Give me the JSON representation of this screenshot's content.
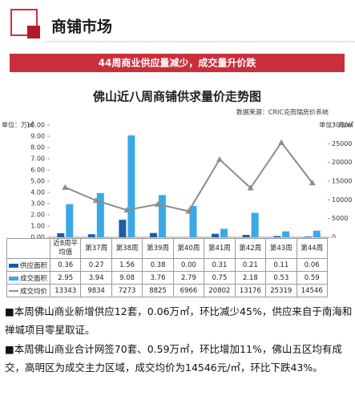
{
  "header": {
    "title": "商铺市场",
    "banner": "44周商业供应量减少，成交量升价跌"
  },
  "chart_data": {
    "type": "bar",
    "title": "佛山近八周商铺供求量价走势图",
    "source": "数据来源：CRIC克而瑞房价系统",
    "y_label": "单位：万㎡",
    "y2_label": "单位：元/㎡",
    "categories": [
      "近8周平均值",
      "第37周",
      "第38周",
      "第39周",
      "第40周",
      "第41周",
      "第42周",
      "第43周",
      "第44周"
    ],
    "series": [
      {
        "name": "供应面积",
        "type": "bar",
        "color": "#1b5ea6",
        "values": [
          0.36,
          0.27,
          1.56,
          0.38,
          0,
          0.31,
          0.21,
          0.11,
          0.06
        ],
        "value_labels": [
          "0.36",
          "0.27",
          "1.56",
          "0.38",
          "0.00",
          "0.31",
          "0.21",
          "0.11",
          "0.06"
        ]
      },
      {
        "name": "成交面积",
        "type": "bar",
        "color": "#3aa9e6",
        "values": [
          2.95,
          3.94,
          9.08,
          3.76,
          2.79,
          0.75,
          2.18,
          0.53,
          0.59
        ]
      },
      {
        "name": "成交均价",
        "type": "line",
        "axis": "y2",
        "color": "#8c8c8c",
        "values": [
          13343,
          9834,
          7273,
          8825,
          6966,
          20802,
          13176,
          25319,
          14546
        ]
      }
    ],
    "ylim": [
      0,
      10
    ],
    "yticks": [
      {
        "value": 0,
        "label": "0.00"
      },
      {
        "value": 1,
        "label": "1.00"
      },
      {
        "value": 2,
        "label": "2.00"
      },
      {
        "value": 3,
        "label": "3.00"
      },
      {
        "value": 4,
        "label": "4.00"
      },
      {
        "value": 5,
        "label": "5.00"
      },
      {
        "value": 6,
        "label": "6.00"
      },
      {
        "value": 7,
        "label": "7.00"
      },
      {
        "value": 8,
        "label": "8.00"
      },
      {
        "value": 9,
        "label": "9.00"
      },
      {
        "value": 10,
        "label": "10.00"
      }
    ],
    "y2lim": [
      0,
      30000
    ],
    "y2ticks": [
      0,
      5000,
      10000,
      15000,
      20000,
      25000,
      30000
    ]
  },
  "paragraphs": [
    "■本周佛山商业新增供应12套，0.06万㎡，环比减少45%，供应来自于南海和禅城项目零星取证。",
    "■本周佛山商业合计网签70套、0.59万㎡，环比增加11%，佛山五区均有成交，高明区为成交主力区域，成交均价为14546元/㎡，环比下跌43%。"
  ]
}
